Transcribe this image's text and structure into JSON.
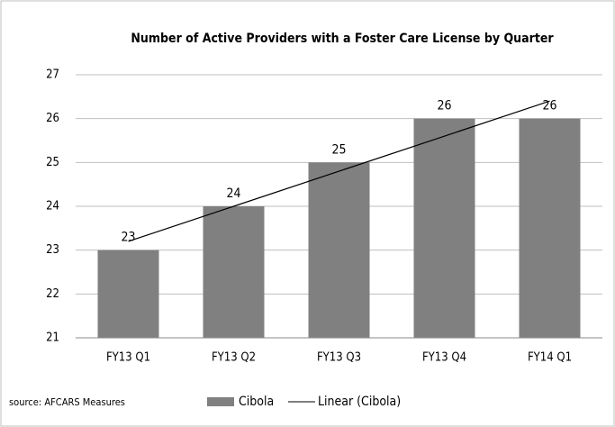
{
  "chart_data": {
    "type": "bar",
    "title": "Number of Active Providers with a Foster Care License by Quarter",
    "source": "source: AFCARS Measures",
    "categories": [
      "FY13 Q1",
      "FY13 Q2",
      "FY13 Q3",
      "FY13 Q4",
      "FY14 Q1"
    ],
    "series": [
      {
        "name": "Cibola",
        "type": "bar",
        "color": "#808080",
        "values": [
          23,
          24,
          25,
          26,
          26
        ]
      },
      {
        "name": "Linear (Cibola)",
        "type": "line",
        "color": "#000000",
        "values": [
          23.2,
          24,
          24.8,
          25.6,
          26.4
        ]
      }
    ],
    "ylim": [
      21,
      27
    ],
    "yticks": [
      21,
      22,
      23,
      24,
      25,
      26,
      27
    ],
    "grid": true,
    "legend": "bottom"
  }
}
